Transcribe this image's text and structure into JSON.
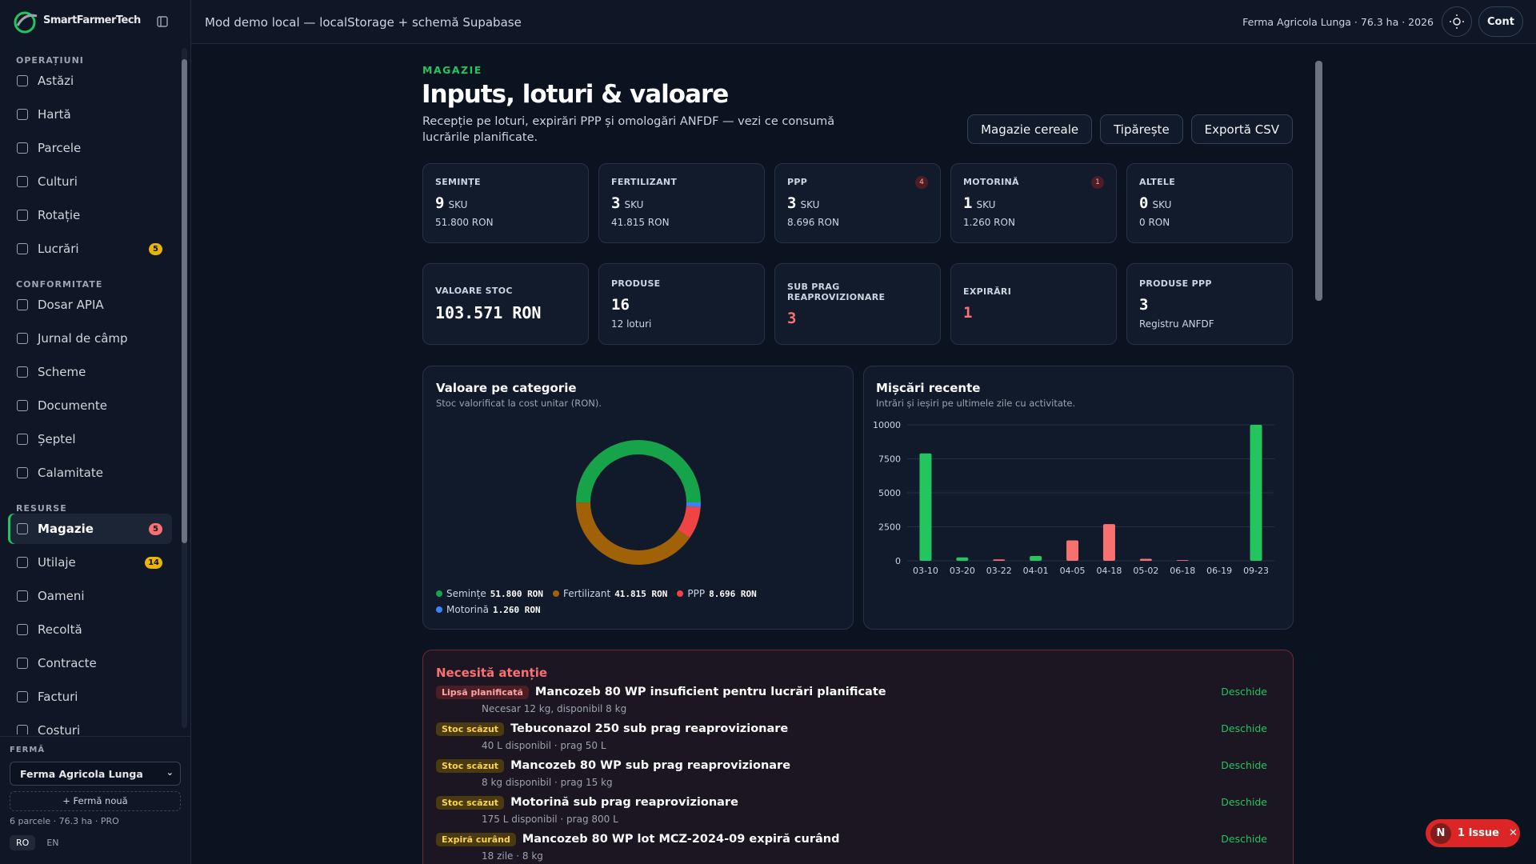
{
  "brand": "SmartFarmerTech",
  "topbar": {
    "mode": "Mod demo local — localStorage + schemă Supabase",
    "context": "Ferma Agricola Lunga · 76.3 ha · 2026",
    "account": "Cont"
  },
  "sidebar": {
    "sections": [
      {
        "title": "OPERAȚIUNI",
        "items": [
          {
            "label": "Astăzi"
          },
          {
            "label": "Hartă"
          },
          {
            "label": "Parcele"
          },
          {
            "label": "Culturi"
          },
          {
            "label": "Rotație"
          },
          {
            "label": "Lucrări",
            "badge": 5,
            "badge_tone": "warn"
          }
        ]
      },
      {
        "title": "CONFORMITATE",
        "items": [
          {
            "label": "Dosar APIA"
          },
          {
            "label": "Jurnal de câmp"
          },
          {
            "label": "Scheme"
          },
          {
            "label": "Documente"
          },
          {
            "label": "Șeptel"
          },
          {
            "label": "Calamitate"
          }
        ]
      },
      {
        "title": "RESURSE",
        "items": [
          {
            "label": "Magazie",
            "badge": 5,
            "badge_tone": "alert",
            "active": true
          },
          {
            "label": "Utilaje",
            "badge": 14,
            "badge_tone": "warn"
          },
          {
            "label": "Oameni"
          },
          {
            "label": "Recoltă"
          },
          {
            "label": "Contracte"
          },
          {
            "label": "Facturi"
          },
          {
            "label": "Costuri"
          }
        ]
      }
    ],
    "farm_label": "FERMĂ",
    "farm_select": "Ferma Agricola Lunga",
    "new_farm": "+ Fermă nouă",
    "farm_info": "6 parcele · 76.3 ha · PRO",
    "languages": [
      "RO",
      "EN"
    ],
    "active_language": 0
  },
  "page": {
    "eyebrow": "MAGAZIE",
    "title": "Inputs, loturi & valoare",
    "subtitle": "Recepție pe loturi, expirări PPP și omologări ANFDF — vezi ce consumă lucrările planificate.",
    "buttons": [
      "Magazie cereale",
      "Tipărește",
      "Exportă CSV"
    ]
  },
  "category_cards": [
    {
      "label": "SEMINȚE",
      "value": 9,
      "unit": "SKU",
      "sub": "51.800 RON"
    },
    {
      "label": "FERTILIZANT",
      "value": 3,
      "unit": "SKU",
      "sub": "41.815 RON"
    },
    {
      "label": "PPP",
      "value": 3,
      "unit": "SKU",
      "sub": "8.696 RON",
      "badge": 4
    },
    {
      "label": "MOTORINĂ",
      "value": 1,
      "unit": "SKU",
      "sub": "1.260 RON",
      "badge": 1
    },
    {
      "label": "ALTELE",
      "value": 0,
      "unit": "SKU",
      "sub": "0 RON"
    }
  ],
  "summary_cards": [
    {
      "label": "VALOARE STOC",
      "value": "103.571 RON",
      "mono": true
    },
    {
      "label": "PRODUSE",
      "value": 16,
      "sub": "12 loturi"
    },
    {
      "label": "SUB PRAG REAPROVIZIONARE",
      "value": 3,
      "alert": true
    },
    {
      "label": "EXPIRĂRI",
      "value": 1,
      "alert": true
    },
    {
      "label": "PRODUSE PPP",
      "value": 3,
      "sub": "Registru ANFDF"
    }
  ],
  "chart_data": [
    {
      "type": "pie",
      "title": "Valoare pe categorie",
      "subtitle": "Stoc valorificat la cost unitar (RON).",
      "categories": [
        "Semințe",
        "Fertilizant",
        "PPP",
        "Motorină"
      ],
      "values": [
        51800,
        41815,
        8696,
        1260
      ],
      "value_labels": [
        "51.800 RON",
        "41.815 RON",
        "8.696 RON",
        "1.260 RON"
      ],
      "colors": [
        "#16a34a",
        "#a16207",
        "#ef4444",
        "#3b82f6"
      ],
      "donut": true
    },
    {
      "type": "bar",
      "title": "Mișcări recente",
      "subtitle": "Intrări și ieșiri pe ultimele zile cu activitate.",
      "categories": [
        "03-10",
        "03-20",
        "03-22",
        "04-01",
        "04-05",
        "04-18",
        "05-02",
        "06-18",
        "06-19",
        "09-23"
      ],
      "series": [
        {
          "color": "#22c55e",
          "values": [
            7900,
            250,
            0,
            350,
            0,
            0,
            0,
            0,
            0,
            10000
          ]
        },
        {
          "color": "#f87171",
          "values": [
            0,
            0,
            100,
            0,
            1500,
            2700,
            150,
            50,
            0,
            0
          ]
        }
      ],
      "ylim": [
        0,
        10000
      ],
      "yticks": [
        0,
        2500,
        5000,
        7500,
        10000
      ],
      "grid": true
    }
  ],
  "attention": {
    "title": "Necesită atenție",
    "action": "Deschide",
    "items": [
      {
        "tag": "Lipsă planificată",
        "tone": "alert",
        "title": "Mancozeb 80 WP insuficient pentru lucrări planificate",
        "detail": "Necesar 12 kg, disponibil 8 kg"
      },
      {
        "tag": "Stoc scăzut",
        "tone": "warn",
        "title": "Tebuconazol 250 sub prag reaprovizionare",
        "detail": "40 L disponibil · prag 50 L"
      },
      {
        "tag": "Stoc scăzut",
        "tone": "warn",
        "title": "Mancozeb 80 WP sub prag reaprovizionare",
        "detail": "8 kg disponibil · prag 15 kg"
      },
      {
        "tag": "Stoc scăzut",
        "tone": "warn",
        "title": "Motorină sub prag reaprovizionare",
        "detail": "175 L disponibil · prag 800 L"
      },
      {
        "tag": "Expiră curând",
        "tone": "warn",
        "title": "Mancozeb 80 WP lot MCZ-2024-09 expiră curând",
        "detail": "18 zile · 8 kg"
      }
    ]
  },
  "toast": {
    "label": "1 Issue",
    "avatar": "N"
  }
}
